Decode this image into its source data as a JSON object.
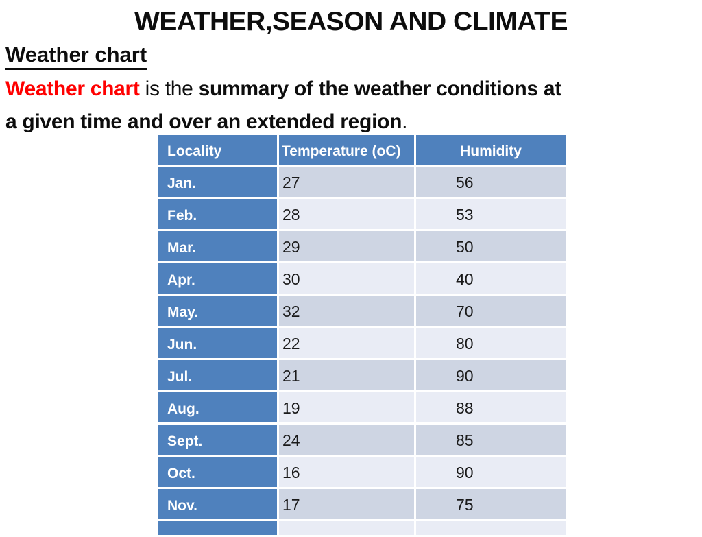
{
  "slide": {
    "title": "WEATHER,SEASON AND CLIMATE",
    "heading": "Weather chart",
    "definition": {
      "term": "Weather chart",
      "connector": " is the ",
      "bold_line1": "summary of the weather conditions at",
      "bold_line2": "a given time and over an extended region",
      "period": "."
    }
  },
  "table": {
    "headers": [
      "Locality",
      "Temperature (oC)",
      "Humidity"
    ],
    "rows": [
      [
        "Jan.",
        "27",
        "56"
      ],
      [
        "Feb.",
        "28",
        "53"
      ],
      [
        "Mar.",
        "29",
        "50"
      ],
      [
        "Apr.",
        "30",
        "40"
      ],
      [
        "May.",
        "32",
        "70"
      ],
      [
        "Jun.",
        "22",
        "80"
      ],
      [
        "Jul.",
        "21",
        "90"
      ],
      [
        "Aug.",
        "19",
        "88"
      ],
      [
        "Sept.",
        "24",
        "85"
      ],
      [
        "Oct.",
        "16",
        "90"
      ],
      [
        "Nov.",
        "17",
        "75"
      ]
    ],
    "partial_last_row_visible": true
  },
  "colors": {
    "header_blue": "#4f81bd",
    "band_dark": "#ced5e3",
    "band_light": "#e9ecf5",
    "term_red": "#ff0000",
    "text_black": "#0d0d0d"
  }
}
